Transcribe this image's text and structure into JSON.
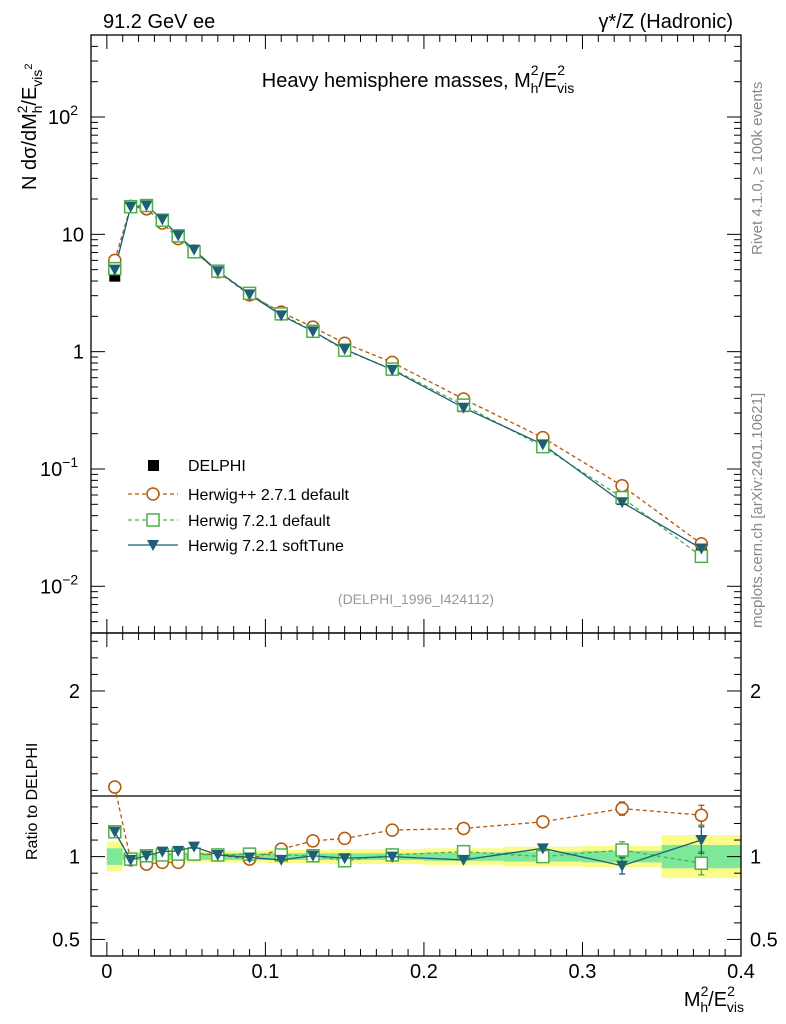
{
  "header": {
    "left_label": "91.2 GeV ee",
    "right_label": "γ*/Z (Hadronic)",
    "side_top": "Rivet 4.1.0, ≥ 100k events",
    "side_bottom": "mcplots.cern.ch [arXiv:2401.10621]"
  },
  "colors": {
    "delphi": "#000000",
    "herwigpp": "#b35806",
    "herwig721": "#4daf4a",
    "softtune": "#1f5f74",
    "band_inner": "#7ee89a",
    "band_outer": "#fbfb8a"
  },
  "chart_data": [
    {
      "type": "line",
      "title": "Heavy hemisphere masses, M",
      "title_sub": "h",
      "title_sup": "2",
      "title_tail": "/E",
      "title_tail_sub": "vis",
      "title_tail_sup": "2",
      "ylabel": "N  dσ/dM",
      "ylabel_sub": "h",
      "ylabel_sup": "2",
      "ylabel_tail": "/E",
      "ylabel_tail_sub": "vis",
      "ylabel_tail_sup": "2",
      "yscale": "log",
      "ylim": [
        0.004,
        500
      ],
      "xlim": [
        -0.01,
        0.4
      ],
      "y_ticks": [
        {
          "value": 100,
          "base": "10",
          "exp": "2"
        },
        {
          "value": 10,
          "base": "10",
          "exp": ""
        },
        {
          "value": 1,
          "base": "1",
          "exp": ""
        },
        {
          "value": 0.1,
          "base": "10",
          "exp": "−1"
        },
        {
          "value": 0.01,
          "base": "10",
          "exp": "−2"
        }
      ],
      "watermark": "(DELPHI_1996_I424112)",
      "legend_position": "lower-left",
      "x": [
        0.005,
        0.015,
        0.025,
        0.035,
        0.045,
        0.055,
        0.07,
        0.09,
        0.11,
        0.13,
        0.15,
        0.18,
        0.225,
        0.275,
        0.325,
        0.375
      ],
      "series": [
        {
          "name": "DELPHI",
          "marker": "filled-square",
          "values": [
            4.4,
            17.5,
            17.5,
            13.0,
            9.5,
            7.0,
            4.8,
            3.1,
            2.08,
            1.48,
            1.06,
            0.7,
            0.34,
            0.155,
            0.055,
            0.019
          ]
        },
        {
          "name": "Herwig++ 2.7.1 default",
          "marker": "open-circle",
          "values": [
            6.0,
            17.3,
            16.5,
            12.5,
            9.2,
            7.2,
            4.8,
            3.05,
            2.17,
            1.62,
            1.18,
            0.81,
            0.395,
            0.185,
            0.072,
            0.023
          ]
        },
        {
          "name": "Herwig 7.2.1 default",
          "marker": "open-square",
          "values": [
            5.1,
            17.2,
            17.6,
            13.2,
            9.7,
            7.1,
            4.85,
            3.14,
            2.1,
            1.49,
            1.03,
            0.71,
            0.35,
            0.155,
            0.057,
            0.018
          ]
        },
        {
          "name": "Herwig 7.2.1 softTune",
          "marker": "filled-triangle-down",
          "values": [
            5.0,
            17.2,
            17.6,
            13.4,
            9.8,
            7.4,
            4.85,
            3.08,
            2.04,
            1.49,
            1.05,
            0.7,
            0.333,
            0.162,
            0.052,
            0.021
          ]
        }
      ]
    },
    {
      "type": "line",
      "ylabel": "Ratio to DELPHI",
      "xlabel": "M",
      "xlabel_sub": "h",
      "xlabel_sup": "2",
      "xlabel_tail": "/E",
      "xlabel_tail_sub": "vis",
      "xlabel_tail_sup": "2",
      "ylim": [
        0.4,
        2.35
      ],
      "y_ticks": [
        2,
        1,
        0.5
      ],
      "y_tick_labels": [
        "2",
        "1",
        "0.5"
      ],
      "x_ticks": [
        0,
        0.1,
        0.2,
        0.3,
        0.4
      ],
      "x_tick_labels": [
        "0",
        "0.1",
        "0.2",
        "0.3",
        "0.4"
      ],
      "bands": [
        {
          "x0": 0.0,
          "x1": 0.01,
          "stat": 0.05,
          "total": 0.09
        },
        {
          "x0": 0.01,
          "x1": 0.02,
          "stat": 0.02,
          "total": 0.03
        },
        {
          "x0": 0.02,
          "x1": 0.03,
          "stat": 0.02,
          "total": 0.03
        },
        {
          "x0": 0.03,
          "x1": 0.04,
          "stat": 0.02,
          "total": 0.03
        },
        {
          "x0": 0.04,
          "x1": 0.05,
          "stat": 0.02,
          "total": 0.03
        },
        {
          "x0": 0.05,
          "x1": 0.06,
          "stat": 0.02,
          "total": 0.035
        },
        {
          "x0": 0.06,
          "x1": 0.08,
          "stat": 0.02,
          "total": 0.035
        },
        {
          "x0": 0.08,
          "x1": 0.1,
          "stat": 0.02,
          "total": 0.035
        },
        {
          "x0": 0.1,
          "x1": 0.12,
          "stat": 0.02,
          "total": 0.04
        },
        {
          "x0": 0.12,
          "x1": 0.14,
          "stat": 0.02,
          "total": 0.04
        },
        {
          "x0": 0.14,
          "x1": 0.16,
          "stat": 0.02,
          "total": 0.045
        },
        {
          "x0": 0.16,
          "x1": 0.2,
          "stat": 0.02,
          "total": 0.045
        },
        {
          "x0": 0.2,
          "x1": 0.25,
          "stat": 0.025,
          "total": 0.05
        },
        {
          "x0": 0.25,
          "x1": 0.3,
          "stat": 0.03,
          "total": 0.06
        },
        {
          "x0": 0.3,
          "x1": 0.35,
          "stat": 0.035,
          "total": 0.065
        },
        {
          "x0": 0.35,
          "x1": 0.4,
          "stat": 0.07,
          "total": 0.13
        }
      ],
      "series": [
        {
          "name": "Herwig++ 2.7.1 default",
          "values": [
            1.42,
            0.98,
            0.955,
            0.965,
            0.965,
            1.02,
            1.01,
            0.985,
            1.045,
            1.095,
            1.11,
            1.16,
            1.17,
            1.21,
            1.29,
            1.25
          ],
          "err": [
            0,
            0,
            0,
            0,
            0,
            0,
            0,
            0,
            0,
            0,
            0,
            0,
            0,
            0,
            0.04,
            0.06
          ]
        },
        {
          "name": "Herwig 7.2.1 default",
          "values": [
            1.15,
            0.985,
            1.005,
            1.01,
            1.015,
            1.015,
            1.01,
            1.015,
            1.01,
            1.005,
            0.975,
            1.01,
            1.03,
            1.0,
            1.04,
            0.96
          ],
          "err": [
            0,
            0,
            0,
            0,
            0,
            0,
            0,
            0,
            0,
            0,
            0,
            0,
            0,
            0,
            0.05,
            0.07
          ]
        },
        {
          "name": "Herwig 7.2.1 softTune",
          "values": [
            1.15,
            0.98,
            1.005,
            1.03,
            1.035,
            1.06,
            1.01,
            0.995,
            0.98,
            1.005,
            0.99,
            1.0,
            0.98,
            1.05,
            0.945,
            1.1
          ],
          "err": [
            0,
            0,
            0,
            0,
            0,
            0,
            0,
            0,
            0,
            0,
            0,
            0,
            0,
            0,
            0.05,
            0.08
          ]
        }
      ]
    }
  ]
}
